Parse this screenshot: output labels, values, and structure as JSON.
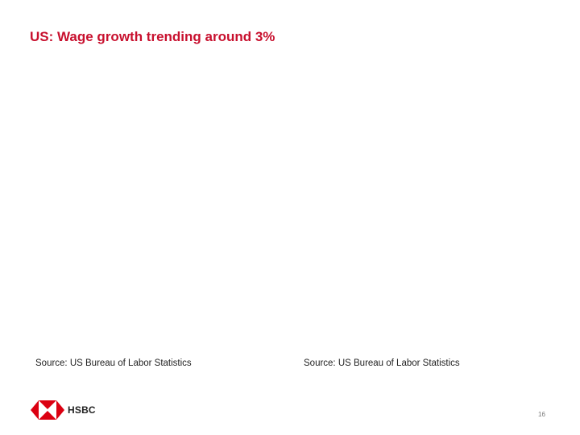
{
  "header": {
    "title": "US: Wage growth trending around 3%"
  },
  "sources": [
    "Source: US Bureau of Labor Statistics",
    "Source: US Bureau of Labor Statistics"
  ],
  "footer": {
    "logo_text": "HSBC",
    "page_number": "16"
  }
}
